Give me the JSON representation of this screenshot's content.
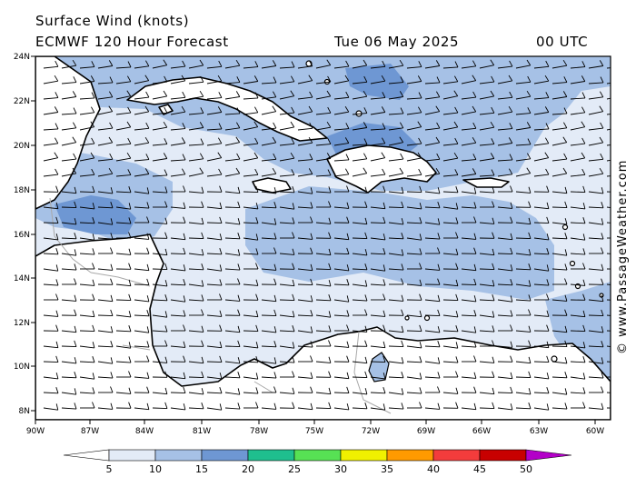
{
  "header": {
    "title": "Surface Wind (knots)",
    "model": "ECMWF 120 Hour Forecast",
    "date": "Tue 06 May 2025",
    "time": "00 UTC"
  },
  "credit": "© www.PassageWeather.com",
  "axes": {
    "lat_labels": [
      "24N",
      "22N",
      "20N",
      "18N",
      "16N",
      "14N",
      "12N",
      "10N",
      "8N"
    ],
    "lon_labels": [
      "90W",
      "87W",
      "84W",
      "81W",
      "78W",
      "75W",
      "72W",
      "69W",
      "66W",
      "63W",
      "60W"
    ]
  },
  "legend": {
    "ticks": [
      "5",
      "10",
      "15",
      "20",
      "25",
      "30",
      "35",
      "40",
      "45",
      "50"
    ],
    "colors": [
      "#e3ebf7",
      "#a6c1e6",
      "#6e97d3",
      "#1fbf8e",
      "#57e154",
      "#f0f000",
      "#ff9a00",
      "#f33c3c",
      "#c80000",
      "#b300c8"
    ]
  },
  "map": {
    "land_color": "#ffffff",
    "sea_light": "#e3ebf7",
    "sea_mid": "#a6c1e6",
    "sea_strong": "#6e97d3",
    "coast_color": "#000000",
    "border_color": "#a8a8a8"
  }
}
